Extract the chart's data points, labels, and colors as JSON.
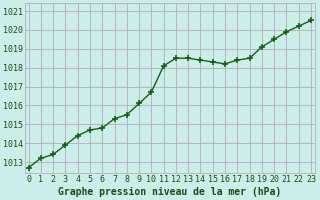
{
  "x": [
    0,
    1,
    2,
    3,
    4,
    5,
    6,
    7,
    8,
    9,
    10,
    11,
    12,
    13,
    14,
    15,
    16,
    17,
    18,
    19,
    20,
    21,
    22,
    23
  ],
  "y": [
    1012.7,
    1013.2,
    1013.4,
    1013.9,
    1014.4,
    1014.7,
    1014.8,
    1015.3,
    1015.5,
    1016.1,
    1016.7,
    1018.1,
    1018.5,
    1018.5,
    1018.4,
    1018.3,
    1018.2,
    1018.4,
    1018.5,
    1019.1,
    1019.5,
    1019.9,
    1020.2,
    1020.5
  ],
  "line_color": "#1a5c1a",
  "marker": "+",
  "marker_size": 5,
  "marker_ew": 1.2,
  "bg_color": "#cceee8",
  "grid_color": "#b8aabb",
  "xlabel": "Graphe pression niveau de la mer (hPa)",
  "xlabel_color": "#1a4a1a",
  "tick_color": "#1a4a1a",
  "ylim": [
    1012.4,
    1021.4
  ],
  "yticks": [
    1013,
    1014,
    1015,
    1016,
    1017,
    1018,
    1019,
    1020,
    1021
  ],
  "xtick_labels": [
    "0",
    "1",
    "2",
    "3",
    "4",
    "5",
    "6",
    "7",
    "8",
    "9",
    "10",
    "11",
    "12",
    "13",
    "14",
    "15",
    "16",
    "17",
    "18",
    "19",
    "20",
    "21",
    "22",
    "23"
  ],
  "xticks": [
    0,
    1,
    2,
    3,
    4,
    5,
    6,
    7,
    8,
    9,
    10,
    11,
    12,
    13,
    14,
    15,
    16,
    17,
    18,
    19,
    20,
    21,
    22,
    23
  ],
  "axis_fontsize": 6.0,
  "xlabel_fontsize": 7.0,
  "line_width": 1.0,
  "xlim": [
    -0.3,
    23.3
  ]
}
